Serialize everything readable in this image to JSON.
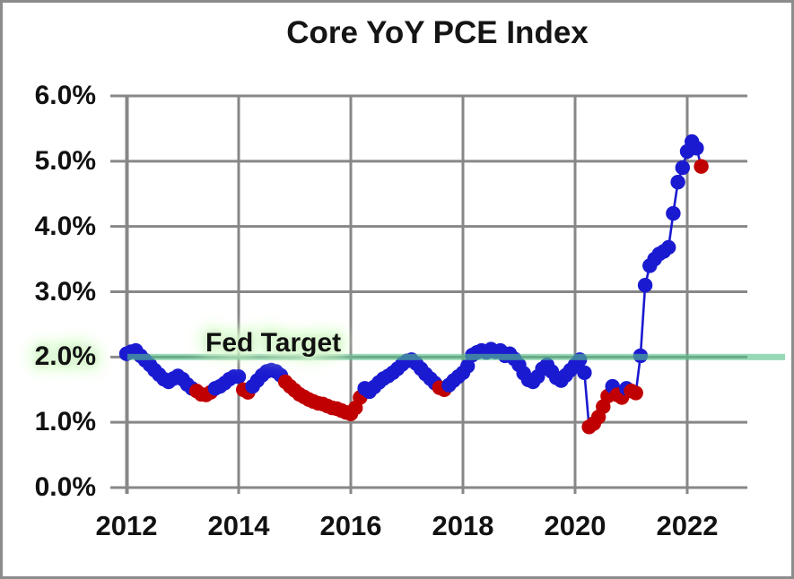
{
  "colors": {
    "point_blue": "#1a1ad1",
    "point_red": "#c00000",
    "line_blue": "#1a1ad1",
    "gridline_gray": "#878787",
    "fed_target_green": "#57c08a",
    "glow_green": "#d9f6cf",
    "text_black": "#111111",
    "frame_border_gray": "#8c8c8c"
  },
  "chart_data": {
    "type": "scatter",
    "title": "Core YoY PCE Index",
    "annotation": "Fed Target",
    "fed_target_value": 2.0,
    "xlabel": "",
    "ylabel": "",
    "xlim": [
      2011.7,
      2023.07
    ],
    "ylim": [
      0.0,
      6.0
    ],
    "grid": true,
    "x_tick_labels": [
      "2012",
      "2014",
      "2016",
      "2018",
      "2020",
      "2022"
    ],
    "x_tick_years": [
      2012,
      2014,
      2016,
      2018,
      2020,
      2022
    ],
    "y_tick_labels": [
      "6.0%",
      "5.0%",
      "4.0%",
      "3.0%",
      "2.0%",
      "1.0%",
      "0.0%"
    ],
    "y_tick_values": [
      6.0,
      5.0,
      4.0,
      3.0,
      2.0,
      1.0,
      0.0
    ],
    "series_note": "points = [decimal_year, yoy_percent, color b=blue r=red], monthly Jan 2012 - Apr 2022",
    "points": [
      [
        2012.0,
        2.05,
        "b"
      ],
      [
        2012.083,
        2.08,
        "b"
      ],
      [
        2012.167,
        2.1,
        "b"
      ],
      [
        2012.25,
        2.02,
        "b"
      ],
      [
        2012.333,
        1.95,
        "b"
      ],
      [
        2012.417,
        1.88,
        "b"
      ],
      [
        2012.5,
        1.8,
        "b"
      ],
      [
        2012.583,
        1.73,
        "b"
      ],
      [
        2012.667,
        1.66,
        "b"
      ],
      [
        2012.75,
        1.62,
        "b"
      ],
      [
        2012.833,
        1.67,
        "b"
      ],
      [
        2012.917,
        1.71,
        "b"
      ],
      [
        2013.0,
        1.66,
        "b"
      ],
      [
        2013.083,
        1.58,
        "b"
      ],
      [
        2013.167,
        1.52,
        "b"
      ],
      [
        2013.25,
        1.48,
        "r"
      ],
      [
        2013.333,
        1.43,
        "r"
      ],
      [
        2013.417,
        1.42,
        "r"
      ],
      [
        2013.5,
        1.46,
        "r"
      ],
      [
        2013.583,
        1.52,
        "b"
      ],
      [
        2013.667,
        1.55,
        "b"
      ],
      [
        2013.75,
        1.6,
        "b"
      ],
      [
        2013.833,
        1.66,
        "b"
      ],
      [
        2013.917,
        1.7,
        "b"
      ],
      [
        2014.0,
        1.7,
        "b"
      ],
      [
        2014.083,
        1.5,
        "r"
      ],
      [
        2014.167,
        1.46,
        "r"
      ],
      [
        2014.25,
        1.55,
        "b"
      ],
      [
        2014.333,
        1.64,
        "b"
      ],
      [
        2014.417,
        1.72,
        "b"
      ],
      [
        2014.5,
        1.78,
        "b"
      ],
      [
        2014.583,
        1.8,
        "b"
      ],
      [
        2014.667,
        1.78,
        "b"
      ],
      [
        2014.75,
        1.72,
        "b"
      ],
      [
        2014.833,
        1.62,
        "r"
      ],
      [
        2014.917,
        1.55,
        "r"
      ],
      [
        2015.0,
        1.49,
        "r"
      ],
      [
        2015.083,
        1.43,
        "r"
      ],
      [
        2015.167,
        1.39,
        "r"
      ],
      [
        2015.25,
        1.35,
        "r"
      ],
      [
        2015.333,
        1.32,
        "r"
      ],
      [
        2015.417,
        1.29,
        "r"
      ],
      [
        2015.5,
        1.28,
        "r"
      ],
      [
        2015.583,
        1.25,
        "r"
      ],
      [
        2015.667,
        1.22,
        "r"
      ],
      [
        2015.75,
        1.21,
        "r"
      ],
      [
        2015.833,
        1.18,
        "r"
      ],
      [
        2015.917,
        1.15,
        "r"
      ],
      [
        2016.0,
        1.13,
        "r"
      ],
      [
        2016.083,
        1.22,
        "r"
      ],
      [
        2016.167,
        1.38,
        "r"
      ],
      [
        2016.25,
        1.52,
        "b"
      ],
      [
        2016.333,
        1.47,
        "b"
      ],
      [
        2016.417,
        1.54,
        "b"
      ],
      [
        2016.5,
        1.61,
        "b"
      ],
      [
        2016.583,
        1.67,
        "b"
      ],
      [
        2016.667,
        1.71,
        "b"
      ],
      [
        2016.75,
        1.76,
        "b"
      ],
      [
        2016.833,
        1.82,
        "b"
      ],
      [
        2016.917,
        1.89,
        "b"
      ],
      [
        2017.0,
        1.94,
        "b"
      ],
      [
        2017.083,
        1.96,
        "b"
      ],
      [
        2017.167,
        1.9,
        "b"
      ],
      [
        2017.25,
        1.82,
        "b"
      ],
      [
        2017.333,
        1.74,
        "b"
      ],
      [
        2017.417,
        1.67,
        "b"
      ],
      [
        2017.5,
        1.6,
        "b"
      ],
      [
        2017.583,
        1.53,
        "r"
      ],
      [
        2017.667,
        1.5,
        "r"
      ],
      [
        2017.75,
        1.57,
        "b"
      ],
      [
        2017.833,
        1.64,
        "b"
      ],
      [
        2017.917,
        1.7,
        "b"
      ],
      [
        2018.0,
        1.76,
        "b"
      ],
      [
        2018.083,
        1.86,
        "b"
      ],
      [
        2018.167,
        2.03,
        "b"
      ],
      [
        2018.25,
        2.07,
        "b"
      ],
      [
        2018.333,
        2.1,
        "b"
      ],
      [
        2018.417,
        2.07,
        "b"
      ],
      [
        2018.5,
        2.12,
        "b"
      ],
      [
        2018.583,
        2.08,
        "b"
      ],
      [
        2018.667,
        2.1,
        "b"
      ],
      [
        2018.75,
        2.02,
        "b"
      ],
      [
        2018.833,
        2.05,
        "b"
      ],
      [
        2018.917,
        1.97,
        "b"
      ],
      [
        2019.0,
        1.88,
        "b"
      ],
      [
        2019.083,
        1.75,
        "b"
      ],
      [
        2019.167,
        1.65,
        "b"
      ],
      [
        2019.25,
        1.62,
        "b"
      ],
      [
        2019.333,
        1.7,
        "b"
      ],
      [
        2019.417,
        1.82,
        "b"
      ],
      [
        2019.5,
        1.88,
        "b"
      ],
      [
        2019.583,
        1.78,
        "b"
      ],
      [
        2019.667,
        1.68,
        "b"
      ],
      [
        2019.75,
        1.64,
        "b"
      ],
      [
        2019.833,
        1.72,
        "b"
      ],
      [
        2019.917,
        1.8,
        "b"
      ],
      [
        2020.0,
        1.88,
        "b"
      ],
      [
        2020.083,
        1.96,
        "b"
      ],
      [
        2020.167,
        1.76,
        "b"
      ],
      [
        2020.25,
        0.93,
        "r"
      ],
      [
        2020.333,
        0.98,
        "r"
      ],
      [
        2020.417,
        1.08,
        "r"
      ],
      [
        2020.5,
        1.24,
        "r"
      ],
      [
        2020.583,
        1.4,
        "r"
      ],
      [
        2020.667,
        1.55,
        "b"
      ],
      [
        2020.75,
        1.42,
        "r"
      ],
      [
        2020.833,
        1.38,
        "r"
      ],
      [
        2020.917,
        1.52,
        "b"
      ],
      [
        2021.0,
        1.48,
        "r"
      ],
      [
        2021.083,
        1.45,
        "r"
      ],
      [
        2021.167,
        2.02,
        "b"
      ],
      [
        2021.25,
        3.1,
        "b"
      ],
      [
        2021.333,
        3.4,
        "b"
      ],
      [
        2021.417,
        3.5,
        "b"
      ],
      [
        2021.5,
        3.58,
        "b"
      ],
      [
        2021.583,
        3.62,
        "b"
      ],
      [
        2021.667,
        3.68,
        "b"
      ],
      [
        2021.75,
        4.2,
        "b"
      ],
      [
        2021.833,
        4.68,
        "b"
      ],
      [
        2021.917,
        4.9,
        "b"
      ],
      [
        2022.0,
        5.15,
        "b"
      ],
      [
        2022.083,
        5.3,
        "b"
      ],
      [
        2022.167,
        5.2,
        "b"
      ],
      [
        2022.25,
        4.92,
        "r"
      ]
    ]
  }
}
